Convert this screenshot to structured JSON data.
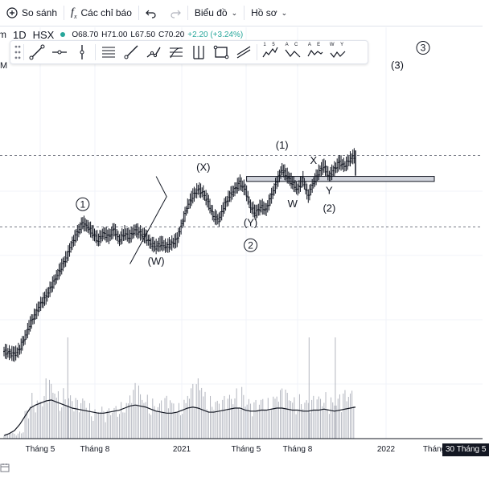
{
  "toolbar": {
    "compare_label": "So sánh",
    "indicators_label": "Các chỉ báo",
    "chart_type_label": "Biểu đồ",
    "profile_label": "Hồ sơ"
  },
  "symbol": {
    "interval_prefix": "m",
    "interval": "1D",
    "exchange": "HSX",
    "status_color": "#26a69a",
    "open": "O68.70",
    "high": "H71.00",
    "low": "L67.50",
    "close": "C70.20",
    "change": "+2.20 (+3.24%)"
  },
  "drawing_tools": [
    "trend-line",
    "horizontal-ray",
    "vertical-line",
    "parallel-channel",
    "ray",
    "polyline",
    "fib-levels",
    "pitchfork",
    "rectangle",
    "regression",
    "elliott-impulse-15",
    "elliott-correction-ac",
    "elliott-triangle-ae",
    "elliott-double-wy"
  ],
  "drawing_tool_labels": {
    "elliott-impulse-15": "1 5",
    "elliott-correction-ac": "A C",
    "elliott-triangle-ae": "A E",
    "elliott-double-wy": "W Y"
  },
  "stray_text": "M",
  "badge_text": "30 Tháng 5",
  "chart_data": {
    "type": "line",
    "title": "",
    "xlabel": "",
    "ylabel": "",
    "x_tick_labels": [
      "Tháng 5",
      "Tháng 8",
      "2021",
      "Tháng 5",
      "Tháng 8",
      "2022",
      "Tháng"
    ],
    "price_series": [
      12,
      11.5,
      11,
      12.5,
      16,
      20,
      23,
      26,
      28,
      31,
      34,
      37,
      40,
      44,
      47,
      50,
      49,
      47,
      45,
      47,
      46,
      48,
      45,
      47,
      46,
      48,
      47,
      46,
      44,
      43,
      44,
      43,
      44,
      45,
      50,
      55,
      58,
      60,
      59,
      56,
      52,
      51,
      55,
      58,
      60,
      62,
      60,
      55,
      53,
      55,
      54,
      58,
      62,
      66,
      64,
      62,
      60,
      63,
      58,
      62,
      65,
      67,
      64,
      66,
      68,
      67,
      69,
      70.2
    ],
    "volume_series": [
      5,
      6,
      5,
      7,
      30,
      45,
      40,
      42,
      60,
      55,
      48,
      50,
      45,
      40,
      38,
      42,
      35,
      30,
      32,
      28,
      30,
      34,
      36,
      38,
      48,
      55,
      45,
      44,
      40,
      36,
      40,
      42,
      38,
      35,
      40,
      50,
      55,
      60,
      48,
      42,
      40,
      38,
      42,
      45,
      50,
      52,
      40,
      36,
      38,
      42,
      40,
      44,
      48,
      50,
      46,
      42,
      44,
      40,
      38,
      42,
      44,
      46,
      42,
      40,
      45,
      48,
      50,
      55
    ],
    "volume_ma_series": [
      3,
      5,
      8,
      14,
      22,
      30,
      33,
      35,
      37,
      38,
      36,
      34,
      32,
      30,
      29,
      28,
      27,
      26,
      25,
      25,
      26,
      27,
      28,
      30,
      32,
      33,
      32,
      31,
      29,
      27,
      26,
      25,
      25,
      26,
      28,
      30,
      31,
      30,
      28,
      26,
      26,
      27,
      28,
      29,
      30,
      30,
      28,
      27,
      27,
      28,
      28,
      29,
      30,
      30,
      29,
      28,
      28,
      27,
      27,
      28,
      28,
      29,
      28,
      27,
      28,
      29,
      30,
      31
    ],
    "resistance_zone": [
      62.5,
      64
    ],
    "dashed_levels": [
      70.2,
      49
    ],
    "elliott_labels": [
      "1",
      "(W)",
      "(X)",
      "(Y)",
      "2",
      "(1)",
      "W",
      "X",
      "Y",
      "(2)",
      "(3)",
      "3"
    ]
  }
}
